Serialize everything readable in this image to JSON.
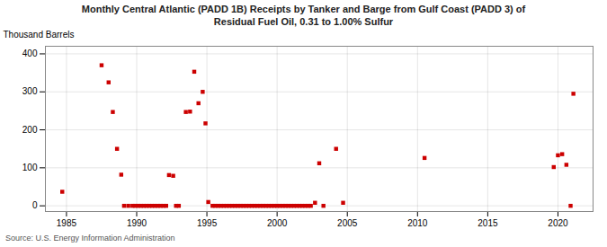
{
  "chart_data": {
    "type": "scatter",
    "title": "Monthly Central Atlantic (PADD 1B) Receipts by Tanker and Barge from Gulf Coast (PADD 3) of\nResidual Fuel Oil, 0.31 to 1.00% Sulfur",
    "ylabel": "Thousand Barrels",
    "annotations": [
      "Source: U.S. Energy Information Administration"
    ],
    "color": "#cc0000",
    "marker": "square",
    "grid": true,
    "xlim": [
      1983.5,
      2022.5
    ],
    "ylim": [
      -15,
      420
    ],
    "xticks": [
      1985,
      1990,
      1995,
      2000,
      2005,
      2010,
      2015,
      2020
    ],
    "yticks": [
      0,
      100,
      200,
      300,
      400
    ],
    "x": [
      1984.7,
      1987.5,
      1988.0,
      1988.3,
      1988.6,
      1988.9,
      1989.1,
      1989.4,
      1989.7,
      1989.9,
      1990.1,
      1990.3,
      1990.5,
      1990.7,
      1990.9,
      1991.1,
      1991.3,
      1991.5,
      1991.7,
      1991.9,
      1992.1,
      1992.3,
      1992.6,
      1992.8,
      1993.0,
      1993.5,
      1993.8,
      1994.1,
      1994.4,
      1994.7,
      1994.9,
      1995.1,
      1995.4,
      1995.6,
      1995.8,
      1996.0,
      1996.2,
      1996.4,
      1996.6,
      1996.8,
      1997.0,
      1997.2,
      1997.4,
      1997.6,
      1997.8,
      1998.0,
      1998.2,
      1998.4,
      1998.6,
      1998.8,
      1999.0,
      1999.2,
      1999.4,
      1999.6,
      1999.8,
      2000.0,
      2000.2,
      2000.4,
      2000.6,
      2000.8,
      2001.0,
      2001.2,
      2001.4,
      2001.6,
      2001.8,
      2002.0,
      2002.2,
      2002.4,
      2002.7,
      2003.0,
      2003.3,
      2004.2,
      2004.7,
      2010.5,
      2019.7,
      2020.0,
      2020.3,
      2020.6,
      2020.9,
      2021.1
    ],
    "values": [
      37,
      370,
      325,
      247,
      150,
      82,
      0,
      0,
      0,
      0,
      0,
      0,
      0,
      0,
      0,
      0,
      0,
      0,
      0,
      0,
      0,
      81,
      79,
      0,
      0,
      247,
      248,
      353,
      270,
      300,
      217,
      10,
      0,
      0,
      0,
      0,
      0,
      0,
      0,
      0,
      0,
      0,
      0,
      0,
      0,
      0,
      0,
      0,
      0,
      0,
      0,
      0,
      0,
      0,
      0,
      0,
      0,
      0,
      0,
      0,
      0,
      0,
      0,
      0,
      0,
      0,
      0,
      0,
      8,
      112,
      0,
      150,
      8,
      126,
      102,
      133,
      136,
      108,
      0,
      295
    ]
  }
}
